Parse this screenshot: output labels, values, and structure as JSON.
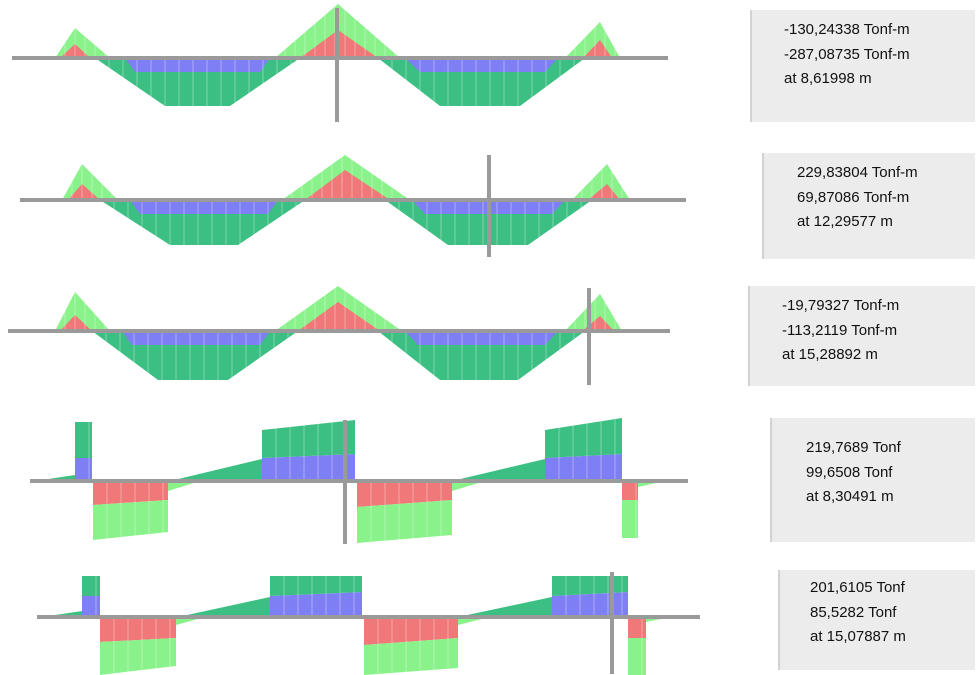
{
  "diagrams": [
    {
      "kind": "moment",
      "readout": {
        "max": "-130,24338 Tonf-m",
        "min": "-287,08735 Tonf-m",
        "at": "at 8,61998 m"
      }
    },
    {
      "kind": "moment",
      "readout": {
        "max": "229,83804 Tonf-m",
        "min": "69,87086 Tonf-m",
        "at": "at 12,29577 m"
      }
    },
    {
      "kind": "moment",
      "readout": {
        "max": "-19,79327 Tonf-m",
        "min": "-113,2119 Tonf-m",
        "at": "at 15,28892 m"
      }
    },
    {
      "kind": "shear",
      "readout": {
        "max": "219,7689 Tonf",
        "min": "99,6508 Tonf",
        "at": "at 8,30491 m"
      }
    },
    {
      "kind": "shear",
      "readout": {
        "max": "201,6105 Tonf",
        "min": "85,5282 Tonf",
        "at": "at 15,07887 m"
      }
    }
  ],
  "colors": {
    "light_green": "#8af28a",
    "dark_green": "#3cbf82",
    "red": "#f07878",
    "blue": "#7f7ff5",
    "axis": "#9a9a9a",
    "panel_bg": "#ececec"
  }
}
